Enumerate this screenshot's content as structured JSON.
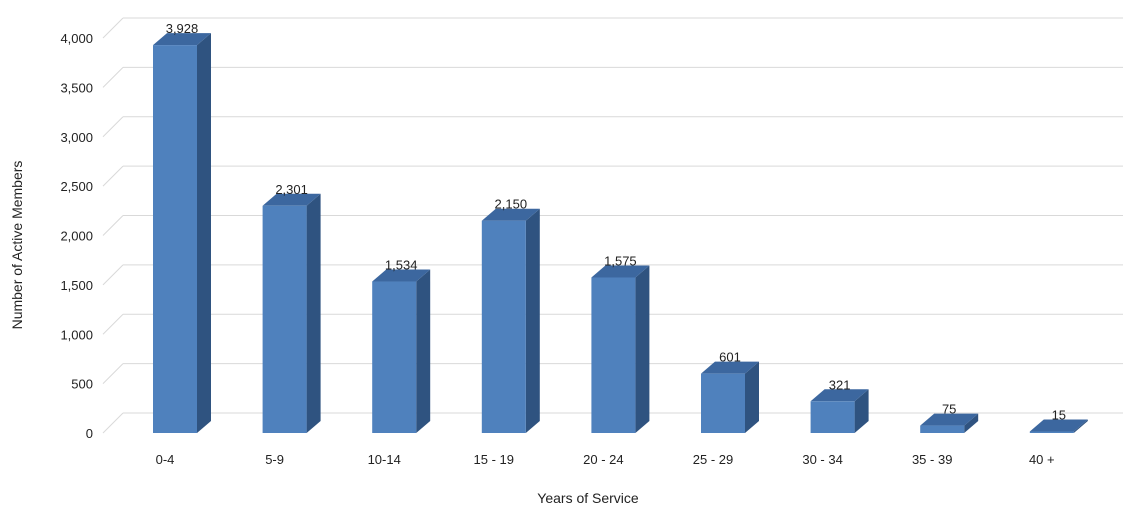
{
  "chart_data": {
    "type": "bar",
    "style": "3d-column",
    "categories": [
      "0-4",
      "5-9",
      "10-14",
      "15 - 19",
      "20 - 24",
      "25 - 29",
      "30 - 34",
      "35 - 39",
      "40 +"
    ],
    "series": [
      {
        "values": [
          3928,
          2301,
          1534,
          2150,
          1575,
          601,
          321,
          75,
          15
        ]
      }
    ],
    "data_labels": [
      "3,928",
      "2,301",
      "1,534",
      "2,150",
      "1,575",
      "601",
      "321",
      "75",
      "15"
    ],
    "xlabel": "Years of Service",
    "ylabel": "Number of Active Members",
    "ylim": [
      0,
      4000
    ],
    "yticks": [
      0,
      500,
      1000,
      1500,
      2000,
      2500,
      3000,
      3500,
      4000
    ],
    "ytick_labels": [
      "0",
      "500",
      "1,000",
      "1,500",
      "2,000",
      "2,500",
      "3,000",
      "3,500",
      "4,000"
    ],
    "grid": true,
    "legend": "none",
    "colors": {
      "bar_front": "#4f81bd",
      "bar_side": "#2f5380",
      "bar_top": "#3c679f",
      "grid": "#d9d9d9"
    }
  }
}
